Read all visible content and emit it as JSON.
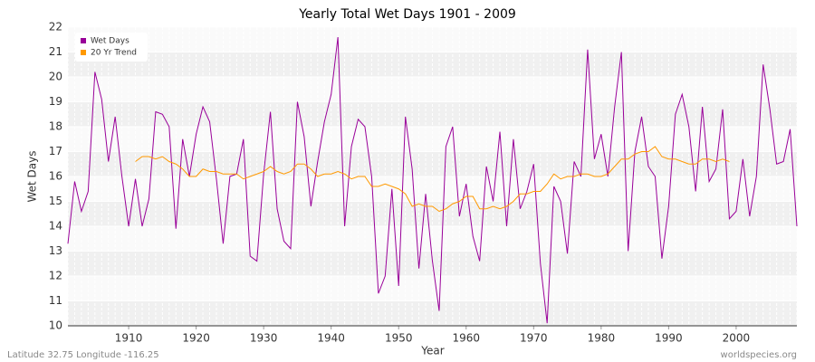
{
  "chart_data": {
    "type": "line",
    "title": "Yearly Total Wet Days 1901 - 2009",
    "x_label": "Year",
    "y_label": "Wet Days",
    "x": [
      1901,
      1902,
      1903,
      1904,
      1905,
      1906,
      1907,
      1908,
      1909,
      1910,
      1911,
      1912,
      1913,
      1914,
      1915,
      1916,
      1917,
      1918,
      1919,
      1920,
      1921,
      1922,
      1923,
      1924,
      1925,
      1926,
      1927,
      1928,
      1929,
      1930,
      1931,
      1932,
      1933,
      1934,
      1935,
      1936,
      1937,
      1938,
      1939,
      1940,
      1941,
      1942,
      1943,
      1944,
      1945,
      1946,
      1947,
      1948,
      1949,
      1950,
      1951,
      1952,
      1953,
      1954,
      1955,
      1956,
      1957,
      1958,
      1959,
      1960,
      1961,
      1962,
      1963,
      1964,
      1965,
      1966,
      1967,
      1968,
      1969,
      1970,
      1971,
      1972,
      1973,
      1974,
      1975,
      1976,
      1977,
      1978,
      1979,
      1980,
      1981,
      1982,
      1983,
      1984,
      1985,
      1986,
      1987,
      1988,
      1989,
      1990,
      1991,
      1992,
      1993,
      1994,
      1995,
      1996,
      1997,
      1998,
      1999,
      2000,
      2001,
      2002,
      2003,
      2004,
      2005,
      2006,
      2007,
      2008,
      2009
    ],
    "series": [
      {
        "name": "Wet Days",
        "color": "#990099",
        "values": [
          13.3,
          15.8,
          14.6,
          15.4,
          20.2,
          19.1,
          16.6,
          18.4,
          16.0,
          14.0,
          15.9,
          14.0,
          15.1,
          18.6,
          18.5,
          18.0,
          13.9,
          17.5,
          16.0,
          17.7,
          18.8,
          18.2,
          15.9,
          13.3,
          16.0,
          16.1,
          17.5,
          12.8,
          12.6,
          16.1,
          18.6,
          14.7,
          13.4,
          13.1,
          19.0,
          17.6,
          14.8,
          16.6,
          18.2,
          19.3,
          21.6,
          14.0,
          17.2,
          18.3,
          18.0,
          16.0,
          11.3,
          12.0,
          15.5,
          11.6,
          18.4,
          16.3,
          12.3,
          15.3,
          12.6,
          10.6,
          17.2,
          18.0,
          14.4,
          15.7,
          13.6,
          12.6,
          16.4,
          15.0,
          17.8,
          14.0,
          17.5,
          14.7,
          15.4,
          16.5,
          12.5,
          10.1,
          15.6,
          15.0,
          12.9,
          16.6,
          16.0,
          21.1,
          16.7,
          17.7,
          16.0,
          18.8,
          21.0,
          13.0,
          17.0,
          18.4,
          16.4,
          16.0,
          12.7,
          14.8,
          18.5,
          19.3,
          18.0,
          15.4,
          18.8,
          15.8,
          16.3,
          18.7,
          14.3,
          14.6,
          16.7,
          14.4,
          16.0,
          20.5,
          18.7,
          16.5,
          16.6,
          17.9,
          14.0
        ]
      },
      {
        "name": "20 Yr Trend",
        "color": "#ff9900",
        "values": [
          null,
          null,
          null,
          null,
          null,
          null,
          null,
          null,
          null,
          null,
          16.6,
          16.8,
          16.8,
          16.7,
          16.8,
          16.6,
          16.5,
          16.3,
          16.0,
          16.0,
          16.3,
          16.2,
          16.2,
          16.1,
          16.1,
          16.1,
          15.9,
          16.0,
          16.1,
          16.2,
          16.4,
          16.2,
          16.1,
          16.2,
          16.5,
          16.5,
          16.3,
          16.0,
          16.1,
          16.1,
          16.2,
          16.1,
          15.9,
          16.0,
          16.0,
          15.6,
          15.6,
          15.7,
          15.6,
          15.5,
          15.3,
          14.8,
          14.9,
          14.8,
          14.8,
          14.6,
          14.7,
          14.9,
          15.0,
          15.2,
          15.2,
          14.7,
          14.7,
          14.8,
          14.7,
          14.8,
          15.0,
          15.3,
          15.3,
          15.4,
          15.4,
          15.7,
          16.1,
          15.9,
          16.0,
          16.0,
          16.1,
          16.1,
          16.0,
          16.0,
          16.1,
          16.4,
          16.7,
          16.7,
          16.9,
          17.0,
          17.0,
          17.2,
          16.8,
          16.7,
          16.7,
          16.6,
          16.5,
          16.5,
          16.7,
          16.7,
          16.6,
          16.7,
          16.6,
          null,
          null,
          null,
          null,
          null,
          null,
          null,
          null,
          null,
          null
        ]
      }
    ],
    "xlim": [
      1901,
      2009
    ],
    "xticks": [
      1910,
      1920,
      1930,
      1940,
      1950,
      1960,
      1970,
      1980,
      1990,
      2000
    ],
    "ylim": [
      10,
      22
    ],
    "yticks": [
      10,
      11,
      12,
      13,
      14,
      15,
      16,
      17,
      18,
      19,
      20,
      21,
      22
    ],
    "grid": true,
    "legend": "upper left",
    "footer_left": "Latitude 32.75 Longitude -116.25",
    "footer_right": "worldspecies.org"
  }
}
